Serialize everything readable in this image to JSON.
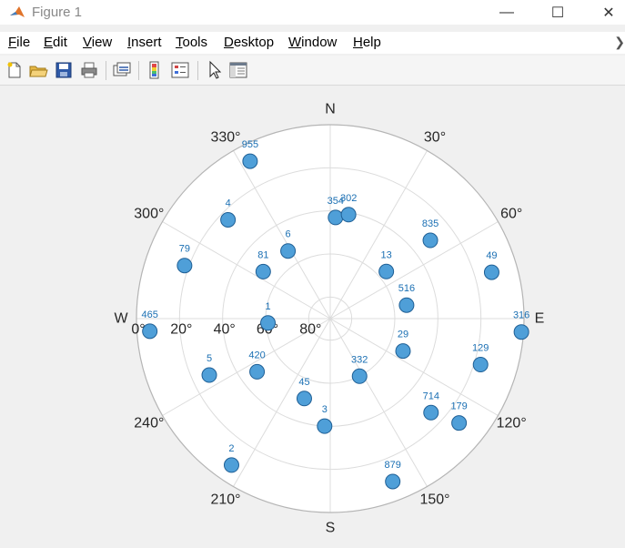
{
  "window": {
    "title": "Figure 1",
    "minimize_glyph": "—",
    "maximize_glyph": "☐",
    "close_glyph": "✕"
  },
  "menu": [
    {
      "pre": "",
      "key": "F",
      "post": "ile"
    },
    {
      "pre": "",
      "key": "E",
      "post": "dit"
    },
    {
      "pre": "",
      "key": "V",
      "post": "iew"
    },
    {
      "pre": "",
      "key": "I",
      "post": "nsert"
    },
    {
      "pre": "",
      "key": "T",
      "post": "ools"
    },
    {
      "pre": "",
      "key": "D",
      "post": "esktop"
    },
    {
      "pre": "",
      "key": "W",
      "post": "indow"
    },
    {
      "pre": "",
      "key": "H",
      "post": "elp"
    }
  ],
  "menu_chevron": "❯",
  "toolbar": {
    "icons": [
      "new-figure-icon",
      "open-folder-icon",
      "save-icon",
      "print-icon",
      "link-plot-icon",
      "colorbar-icon",
      "legend-icon",
      "edit-plot-icon",
      "property-inspector-icon"
    ]
  },
  "colors": {
    "marker_fill": "#4f9fd8",
    "marker_edge": "#1f5f95",
    "label": "#1a6fb3",
    "grid": "#dcdcdc",
    "axes_bg": "#ffffff",
    "axis_outline": "#b5b5b5"
  },
  "chart_data": {
    "type": "scatter",
    "coordinate_system": "polar",
    "theta_zero": "top",
    "theta_direction": "clockwise",
    "theta_ticks": [
      0,
      30,
      60,
      90,
      120,
      150,
      180,
      210,
      240,
      270,
      300,
      330
    ],
    "theta_tick_labels": [
      "N",
      "30°",
      "60°",
      "E",
      "120°",
      "150°",
      "S",
      "210°",
      "240°",
      "W",
      "300°",
      "330°"
    ],
    "r_axis": "elevation, 90° at center, 0° at rim",
    "r_ticks": [
      0,
      20,
      40,
      60,
      80
    ],
    "r_tick_labels": [
      "0°",
      "20°",
      "40°",
      "60°",
      "80°"
    ],
    "r_tick_angle": 270,
    "grid": true,
    "points": [
      {
        "label": "955",
        "azimuth": 333,
        "elevation": 8
      },
      {
        "label": "354",
        "azimuth": 3,
        "elevation": 43
      },
      {
        "label": "302",
        "azimuth": 10,
        "elevation": 41
      },
      {
        "label": "4",
        "azimuth": 314,
        "elevation": 24
      },
      {
        "label": "6",
        "azimuth": 328,
        "elevation": 53
      },
      {
        "label": "13",
        "azimuth": 50,
        "elevation": 56
      },
      {
        "label": "835",
        "azimuth": 52,
        "elevation": 31
      },
      {
        "label": "79",
        "azimuth": 290,
        "elevation": 18
      },
      {
        "label": "81",
        "azimuth": 305,
        "elevation": 52
      },
      {
        "label": "49",
        "azimuth": 74,
        "elevation": 12
      },
      {
        "label": "516",
        "azimuth": 80,
        "elevation": 54
      },
      {
        "label": "1",
        "azimuth": 266,
        "elevation": 61
      },
      {
        "label": "465",
        "azimuth": 266,
        "elevation": 6
      },
      {
        "label": "316",
        "azimuth": 94,
        "elevation": 1
      },
      {
        "label": "29",
        "azimuth": 114,
        "elevation": 53
      },
      {
        "label": "129",
        "azimuth": 107,
        "elevation": 17
      },
      {
        "label": "5",
        "azimuth": 245,
        "elevation": 28
      },
      {
        "label": "420",
        "azimuth": 234,
        "elevation": 48
      },
      {
        "label": "332",
        "azimuth": 153,
        "elevation": 60
      },
      {
        "label": "45",
        "azimuth": 198,
        "elevation": 51
      },
      {
        "label": "714",
        "azimuth": 133,
        "elevation": 26
      },
      {
        "label": "3",
        "azimuth": 183,
        "elevation": 40
      },
      {
        "label": "179",
        "azimuth": 129,
        "elevation": 13
      },
      {
        "label": "879",
        "azimuth": 159,
        "elevation": 9
      },
      {
        "label": "2",
        "azimuth": 214,
        "elevation": 8
      }
    ]
  }
}
